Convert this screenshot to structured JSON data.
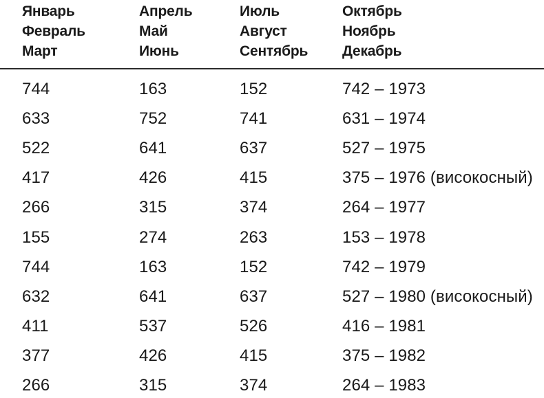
{
  "page": {
    "background_color": "#ffffff",
    "text_color": "#1a1a1a",
    "divider_color": "#2b2b2b"
  },
  "table": {
    "header": {
      "columns": [
        {
          "lines": [
            "Январь",
            "Февраль",
            "Март"
          ]
        },
        {
          "lines": [
            "Апрель",
            "Май",
            "Июнь"
          ]
        },
        {
          "lines": [
            "Июль",
            "Август",
            "Сентябрь"
          ]
        },
        {
          "lines": [
            "Октябрь",
            "Ноябрь",
            "Декабрь"
          ]
        }
      ]
    },
    "rows": [
      {
        "c1": "744",
        "c2": "163",
        "c3": "152",
        "c4": "742 – 1973"
      },
      {
        "c1": "633",
        "c2": "752",
        "c3": "741",
        "c4": "631 – 1974"
      },
      {
        "c1": "522",
        "c2": "641",
        "c3": "637",
        "c4": "527 – 1975"
      },
      {
        "c1": "417",
        "c2": "426",
        "c3": "415",
        "c4": "375 – 1976 (високосный)"
      },
      {
        "c1": "266",
        "c2": "315",
        "c3": "374",
        "c4": "264 – 1977"
      },
      {
        "c1": "155",
        "c2": "274",
        "c3": "263",
        "c4": "153 – 1978"
      },
      {
        "c1": "744",
        "c2": "163",
        "c3": "152",
        "c4": "742 – 1979"
      },
      {
        "c1": "632",
        "c2": "641",
        "c3": "637",
        "c4": "527 – 1980 (високосный)"
      },
      {
        "c1": "411",
        "c2": "537",
        "c3": "526",
        "c4": "416 – 1981"
      },
      {
        "c1": "377",
        "c2": "426",
        "c3": "415",
        "c4": "375 – 1982"
      },
      {
        "c1": "266",
        "c2": "315",
        "c3": "374",
        "c4": "264 – 1983"
      }
    ]
  }
}
